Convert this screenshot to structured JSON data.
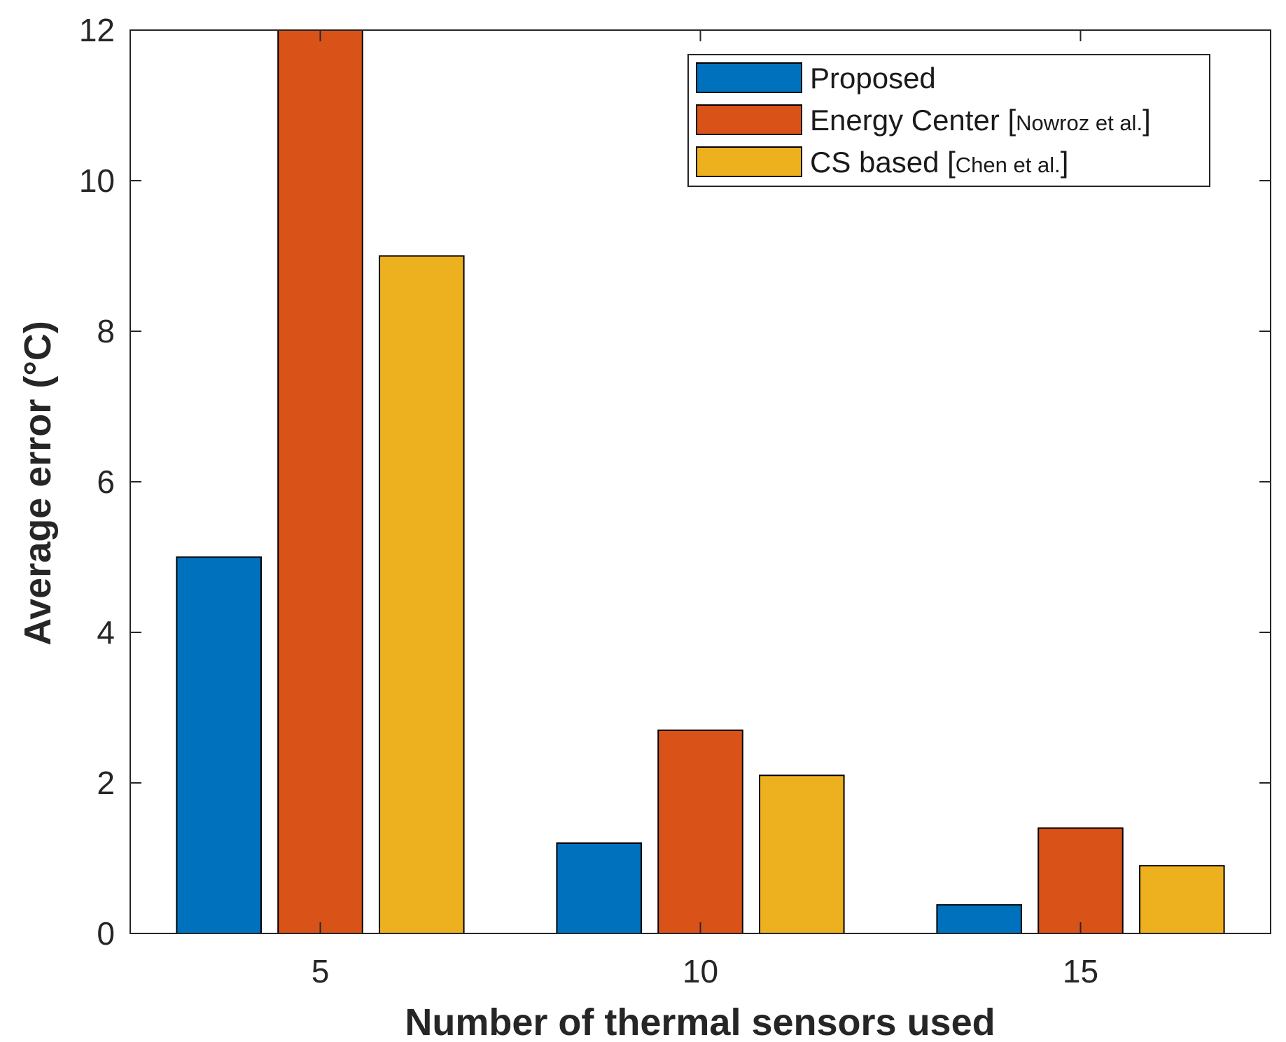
{
  "chart_data": {
    "type": "bar",
    "title": "",
    "xlabel": "Number of thermal sensors used",
    "ylabel": "Average error (°C)",
    "categories": [
      "5",
      "10",
      "15"
    ],
    "ylim": [
      0,
      12
    ],
    "yticks": [
      "0",
      "2",
      "4",
      "6",
      "8",
      "10",
      "12"
    ],
    "grid": false,
    "legend_position": "top-right",
    "series": [
      {
        "name": "Proposed",
        "label": "Proposed",
        "citation": "",
        "color": "#0072BD",
        "values": [
          5.0,
          1.2,
          0.38
        ]
      },
      {
        "name": "Energy Center [Nowroz et al.]",
        "label": "Energy Center",
        "citation": "Nowroz et al.",
        "color": "#D95319",
        "values": [
          12.0,
          2.7,
          1.4
        ]
      },
      {
        "name": "CS based [Chen et al.]",
        "label": "CS based",
        "citation": "Chen et al.",
        "color": "#EDB120",
        "values": [
          9.0,
          2.1,
          0.9
        ]
      }
    ]
  }
}
